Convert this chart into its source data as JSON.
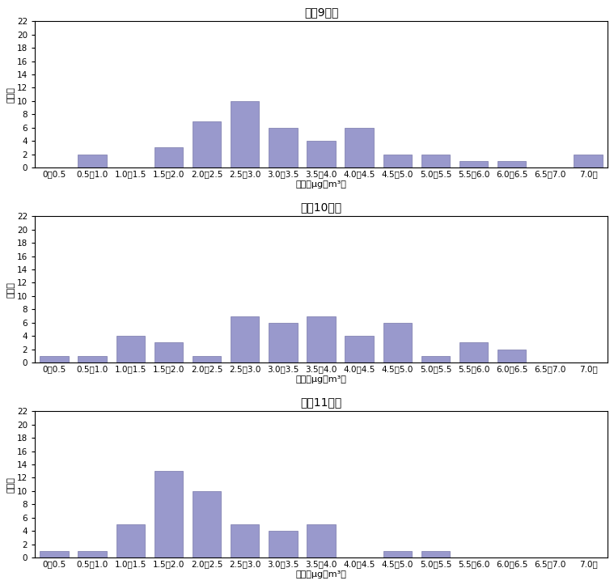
{
  "charts": [
    {
      "title": "平成9年度",
      "values": [
        0,
        2,
        0,
        3,
        7,
        10,
        6,
        4,
        6,
        2,
        2,
        1,
        1,
        0,
        2
      ]
    },
    {
      "title": "平成10年度",
      "values": [
        1,
        1,
        4,
        3,
        1,
        7,
        6,
        7,
        4,
        6,
        1,
        3,
        2,
        0,
        0
      ]
    },
    {
      "title": "平成11年度",
      "values": [
        1,
        1,
        5,
        13,
        10,
        5,
        4,
        5,
        0,
        1,
        1,
        0,
        0,
        0,
        0
      ]
    }
  ],
  "categories": [
    "0～0.5",
    "0.5～1.0",
    "1.0～1.5",
    "1.5～2.0",
    "2.0～2.5",
    "2.5～3.0",
    "3.0～3.5",
    "3.5～4.0",
    "4.0～4.5",
    "4.5～5.0",
    "5.0～5.5",
    "5.5～6.0",
    "6.0～6.5",
    "6.5～7.0",
    "7.0～"
  ],
  "xlabel": "濃度（μg／m³）",
  "ylabel": "地点数",
  "ylim": [
    0,
    22
  ],
  "yticks": [
    0,
    2,
    4,
    6,
    8,
    10,
    12,
    14,
    16,
    18,
    20,
    22
  ],
  "bar_color": "#9999cc",
  "bar_edge_color": "#7777aa",
  "title_fontsize": 10,
  "axis_fontsize": 8,
  "tick_fontsize": 7.5,
  "figure_bg": "#ffffff",
  "axes_bg": "#ffffff"
}
